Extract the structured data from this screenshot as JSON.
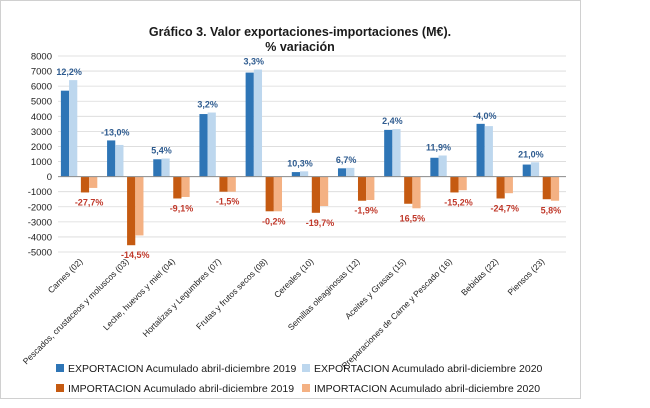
{
  "chart_data": {
    "type": "bar",
    "title_line1": "Gráfico 3. Valor exportaciones-importaciones (M€).",
    "title_line2": "% variación",
    "ylim": [
      -5000,
      8000
    ],
    "yticks": [
      8000,
      7000,
      6000,
      5000,
      4000,
      3000,
      2000,
      1000,
      0,
      -1000,
      -2000,
      -3000,
      -4000,
      -5000
    ],
    "categories": [
      "Carnes (02)",
      "Pescados, crustaceos y moluscos (03)",
      "Leche, huevos y miel (04)",
      "Hortalizas y Legumbres (07)",
      "Frutas y frutos secos (08)",
      "Cereales (10)",
      "Semillas oleaginosas (12)",
      "Aceites y Grasas (15)",
      "Preparaciones de Carne y Pescado (16)",
      "Bebidas (22)",
      "Piensos (23)"
    ],
    "series": [
      {
        "name": "EXPORTACION Acumulado abril-diciembre 2019",
        "color": "#2e75b6",
        "values": [
          5700,
          2400,
          1150,
          4150,
          6900,
          300,
          550,
          3100,
          1250,
          3500,
          800
        ]
      },
      {
        "name": "EXPORTACION Acumulado abril-diciembre 2020",
        "color": "#bdd7ee",
        "values": [
          6400,
          2100,
          1200,
          4250,
          7100,
          350,
          580,
          3150,
          1400,
          3350,
          950
        ]
      },
      {
        "name": "IMPORTACION Acumulado abril-diciembre 2019",
        "color": "#c55a11",
        "values": [
          -1050,
          -4550,
          -1450,
          -1000,
          -2300,
          -2400,
          -1600,
          -1800,
          -1050,
          -1450,
          -1500
        ]
      },
      {
        "name": "IMPORTACION Acumulado abril-diciembre 2020",
        "color": "#f4b183",
        "values": [
          -750,
          -3900,
          -1350,
          -1000,
          -2300,
          -1950,
          -1550,
          -2100,
          -900,
          -1100,
          -1600
        ]
      }
    ],
    "export_labels": [
      "12,2%",
      "-13,0%",
      "5,4%",
      "3,2%",
      "3,3%",
      "10,3%",
      "6,7%",
      "2,4%",
      "11,9%",
      "-4,0%",
      "21,0%"
    ],
    "import_labels": [
      "-27,7%",
      "-14,5%",
      "-9,1%",
      "-1,5%",
      "-0,2%",
      "-19,7%",
      "-1,9%",
      "16,5%",
      "-15,2%",
      "-24,7%",
      "5,8%"
    ],
    "legend_position": "bottom"
  }
}
